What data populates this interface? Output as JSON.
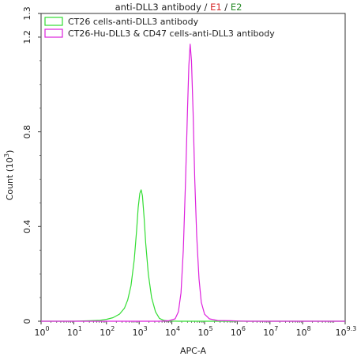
{
  "chart_data": {
    "type": "line",
    "title_parts": [
      {
        "text": "anti-DLL3 antibody",
        "color": "#222222"
      },
      {
        "text": " / ",
        "color": "#222222"
      },
      {
        "text": "E1",
        "color": "#d62728"
      },
      {
        "text": " / ",
        "color": "#222222"
      },
      {
        "text": "E2",
        "color": "#2a8c2a"
      }
    ],
    "xlabel": "APC-A",
    "ylabel_base": "Count (10",
    "ylabel_exp": "3",
    "ylabel_end": ")",
    "x_scale": "log10",
    "xlim": [
      0,
      9.3
    ],
    "ylim": [
      0,
      1.3
    ],
    "x_ticks": [
      {
        "pos": 0,
        "base": "10",
        "exp": "0"
      },
      {
        "pos": 1,
        "base": "10",
        "exp": "1"
      },
      {
        "pos": 2,
        "base": "10",
        "exp": "2"
      },
      {
        "pos": 3,
        "base": "10",
        "exp": "3"
      },
      {
        "pos": 4,
        "base": "10",
        "exp": "4"
      },
      {
        "pos": 5,
        "base": "10",
        "exp": "5"
      },
      {
        "pos": 6,
        "base": "10",
        "exp": "6"
      },
      {
        "pos": 7,
        "base": "10",
        "exp": "7"
      },
      {
        "pos": 8,
        "base": "10",
        "exp": "8"
      },
      {
        "pos": 9.3,
        "base": "10",
        "exp": "9.3"
      }
    ],
    "y_ticks": [
      {
        "pos": 0,
        "label": "0"
      },
      {
        "pos": 0.4,
        "label": "0.4"
      },
      {
        "pos": 0.8,
        "label": "0.8"
      },
      {
        "pos": 1.2,
        "label": "1.2"
      },
      {
        "pos": 1.3,
        "label": "1.3"
      }
    ],
    "grid": false,
    "legend_position": "top-left",
    "series": [
      {
        "name": "CT26 cells-anti-DLL3 antibody",
        "color": "#33dd33",
        "points": [
          [
            0,
            0
          ],
          [
            1.0,
            0
          ],
          [
            1.5,
            0.002
          ],
          [
            1.8,
            0.004
          ],
          [
            2.0,
            0.008
          ],
          [
            2.2,
            0.015
          ],
          [
            2.4,
            0.03
          ],
          [
            2.55,
            0.055
          ],
          [
            2.65,
            0.09
          ],
          [
            2.75,
            0.15
          ],
          [
            2.85,
            0.26
          ],
          [
            2.92,
            0.38
          ],
          [
            2.97,
            0.48
          ],
          [
            3.02,
            0.54
          ],
          [
            3.06,
            0.555
          ],
          [
            3.1,
            0.53
          ],
          [
            3.15,
            0.44
          ],
          [
            3.2,
            0.33
          ],
          [
            3.28,
            0.2
          ],
          [
            3.38,
            0.1
          ],
          [
            3.5,
            0.04
          ],
          [
            3.62,
            0.012
          ],
          [
            3.75,
            0.004
          ],
          [
            3.9,
            0.001
          ],
          [
            4.2,
            0
          ],
          [
            9.3,
            0
          ]
        ]
      },
      {
        "name": "CT26-Hu-DLL3 & CD47 cells-anti-DLL3 antibody",
        "color": "#dd22dd",
        "points": [
          [
            0,
            0
          ],
          [
            3.6,
            0
          ],
          [
            3.9,
            0.002
          ],
          [
            4.1,
            0.01
          ],
          [
            4.2,
            0.04
          ],
          [
            4.28,
            0.12
          ],
          [
            4.35,
            0.3
          ],
          [
            4.42,
            0.6
          ],
          [
            4.48,
            0.9
          ],
          [
            4.52,
            1.08
          ],
          [
            4.56,
            1.17
          ],
          [
            4.6,
            1.1
          ],
          [
            4.65,
            0.88
          ],
          [
            4.7,
            0.6
          ],
          [
            4.76,
            0.36
          ],
          [
            4.83,
            0.18
          ],
          [
            4.9,
            0.08
          ],
          [
            5.0,
            0.03
          ],
          [
            5.15,
            0.01
          ],
          [
            5.4,
            0.003
          ],
          [
            5.8,
            0.002
          ],
          [
            6.0,
            0.001
          ],
          [
            6.3,
            0
          ],
          [
            9.3,
            0
          ]
        ]
      }
    ]
  }
}
